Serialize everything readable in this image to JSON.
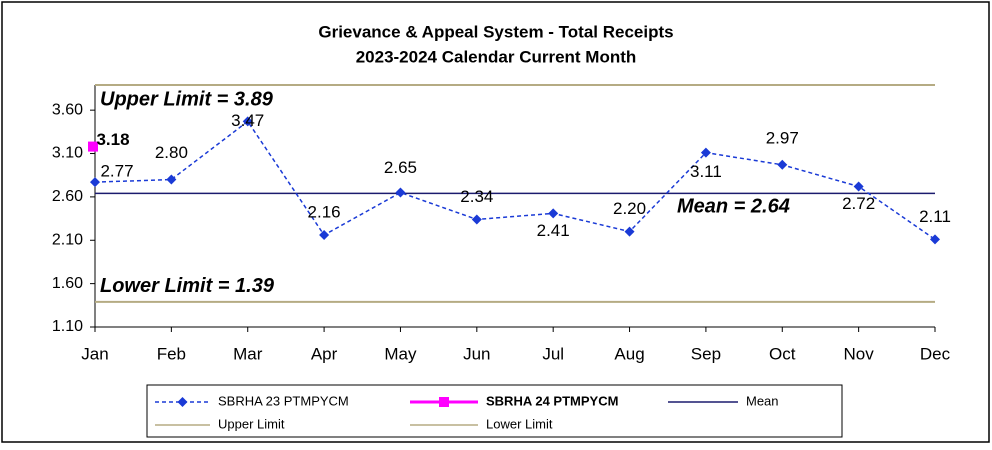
{
  "chart_data": {
    "type": "line",
    "title": "Grievance & Appeal System - Total Receipts",
    "subtitle": "2023-2024 Calendar Current Month",
    "categories": [
      "Jan",
      "Feb",
      "Mar",
      "Apr",
      "May",
      "Jun",
      "Jul",
      "Aug",
      "Sep",
      "Oct",
      "Nov",
      "Dec"
    ],
    "series": [
      {
        "name": "SBRHA 23 PTMPYCM",
        "color": "#1a3ad6",
        "values": [
          2.77,
          2.8,
          3.47,
          2.16,
          2.65,
          2.34,
          2.41,
          2.2,
          3.11,
          2.97,
          2.72,
          2.11
        ],
        "value_labels": [
          "2.77",
          "2.80",
          "3.47",
          "2.16",
          "2.65",
          "2.34",
          "2.41",
          "2.20",
          "3.11",
          "2.97",
          "2.72",
          "2.11"
        ]
      },
      {
        "name": "SBRHA 24 PTMPYCM",
        "color": "#ff00ff",
        "values": [
          3.18,
          null,
          null,
          null,
          null,
          null,
          null,
          null,
          null,
          null,
          null,
          null
        ],
        "value_labels": [
          "3.18",
          null,
          null,
          null,
          null,
          null,
          null,
          null,
          null,
          null,
          null,
          null
        ]
      }
    ],
    "reference_lines": [
      {
        "name": "Mean",
        "value": 2.64,
        "color": "#1b1b6e",
        "label": "Mean = 2.64"
      },
      {
        "name": "Upper Limit",
        "value": 3.89,
        "color": "#b5ab83",
        "label": "Upper Limit = 3.89"
      },
      {
        "name": "Lower Limit",
        "value": 1.39,
        "color": "#b5ab83",
        "label": "Lower Limit = 1.39"
      }
    ],
    "ylim": [
      1.1,
      3.89
    ],
    "yticks": [
      {
        "value": 1.1,
        "label": "1.10"
      },
      {
        "value": 1.6,
        "label": "1.60"
      },
      {
        "value": 2.1,
        "label": "2.10"
      },
      {
        "value": 2.6,
        "label": "2.60"
      },
      {
        "value": 3.1,
        "label": "3.10"
      },
      {
        "value": 3.6,
        "label": "3.60"
      }
    ],
    "grid": false
  }
}
